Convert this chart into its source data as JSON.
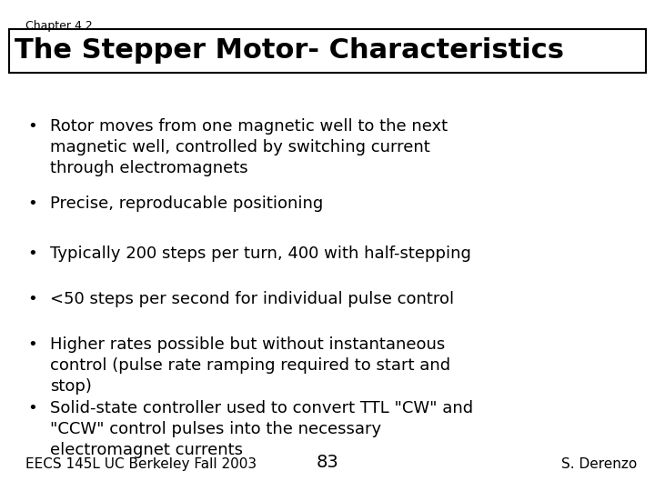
{
  "chapter_label": "Chapter 4.2",
  "title": "The Stepper Motor- Characteristics",
  "bullets": [
    "Rotor moves from one magnetic well to the next\nmagnetic well, controlled by switching current\nthrough electromagnets",
    "Precise, reproducable positioning",
    "Typically 200 steps per turn, 400 with half-stepping",
    "<50 steps per second for individual pulse control",
    "Higher rates possible but without instantaneous\ncontrol (pulse rate ramping required to start and\nstop)",
    "Solid-state controller used to convert TTL \"CW\" and\n\"CCW\" control pulses into the necessary\nelectromagnet currents"
  ],
  "footer_left": "EECS 145L UC Berkeley Fall 2003",
  "footer_center": "83",
  "footer_right": "S. Derenzo",
  "bg_color": "#ffffff",
  "text_color": "#000000",
  "title_fontsize": 22,
  "chapter_fontsize": 9,
  "bullet_fontsize": 13,
  "footer_fontsize": 11
}
